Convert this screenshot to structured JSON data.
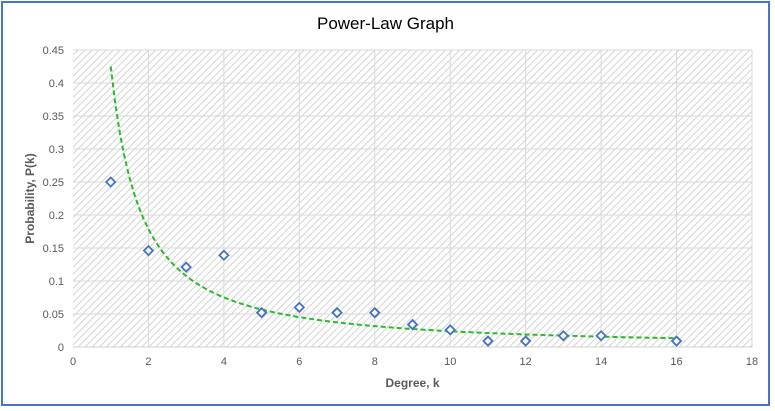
{
  "chart_data": {
    "type": "scatter",
    "title": "Power-Law Graph",
    "xlabel": "Degree, k",
    "ylabel": "Probability, P(k)",
    "xlim": [
      0,
      18
    ],
    "ylim": [
      0,
      0.45
    ],
    "x_ticks": [
      "0",
      "2",
      "4",
      "6",
      "8",
      "10",
      "12",
      "14",
      "16",
      "18"
    ],
    "y_ticks": [
      "0",
      "0.05",
      "0.1",
      "0.15",
      "0.2",
      "0.25",
      "0.3",
      "0.35",
      "0.4",
      "0.45"
    ],
    "grid": true,
    "legend": "none",
    "series": [
      {
        "type": "scatter",
        "marker": "diamond-open",
        "color": "#4472c4",
        "x": [
          1,
          2,
          3,
          4,
          5,
          6,
          7,
          8,
          9,
          10,
          11,
          12,
          13,
          14,
          16
        ],
        "y": [
          0.25,
          0.146,
          0.121,
          0.139,
          0.052,
          0.06,
          0.052,
          0.052,
          0.034,
          0.026,
          0.009,
          0.009,
          0.017,
          0.017,
          0.009
        ]
      },
      {
        "type": "power-trendline",
        "style": "dashed",
        "color": "#2db82d",
        "x_range": [
          1,
          16
        ],
        "coefficient": 0.425,
        "exponent": -1.25
      }
    ]
  },
  "colors": {
    "border": "#4a74c4",
    "plot_hatch": "#d9d9d9",
    "grid": "#d9d9d9"
  }
}
